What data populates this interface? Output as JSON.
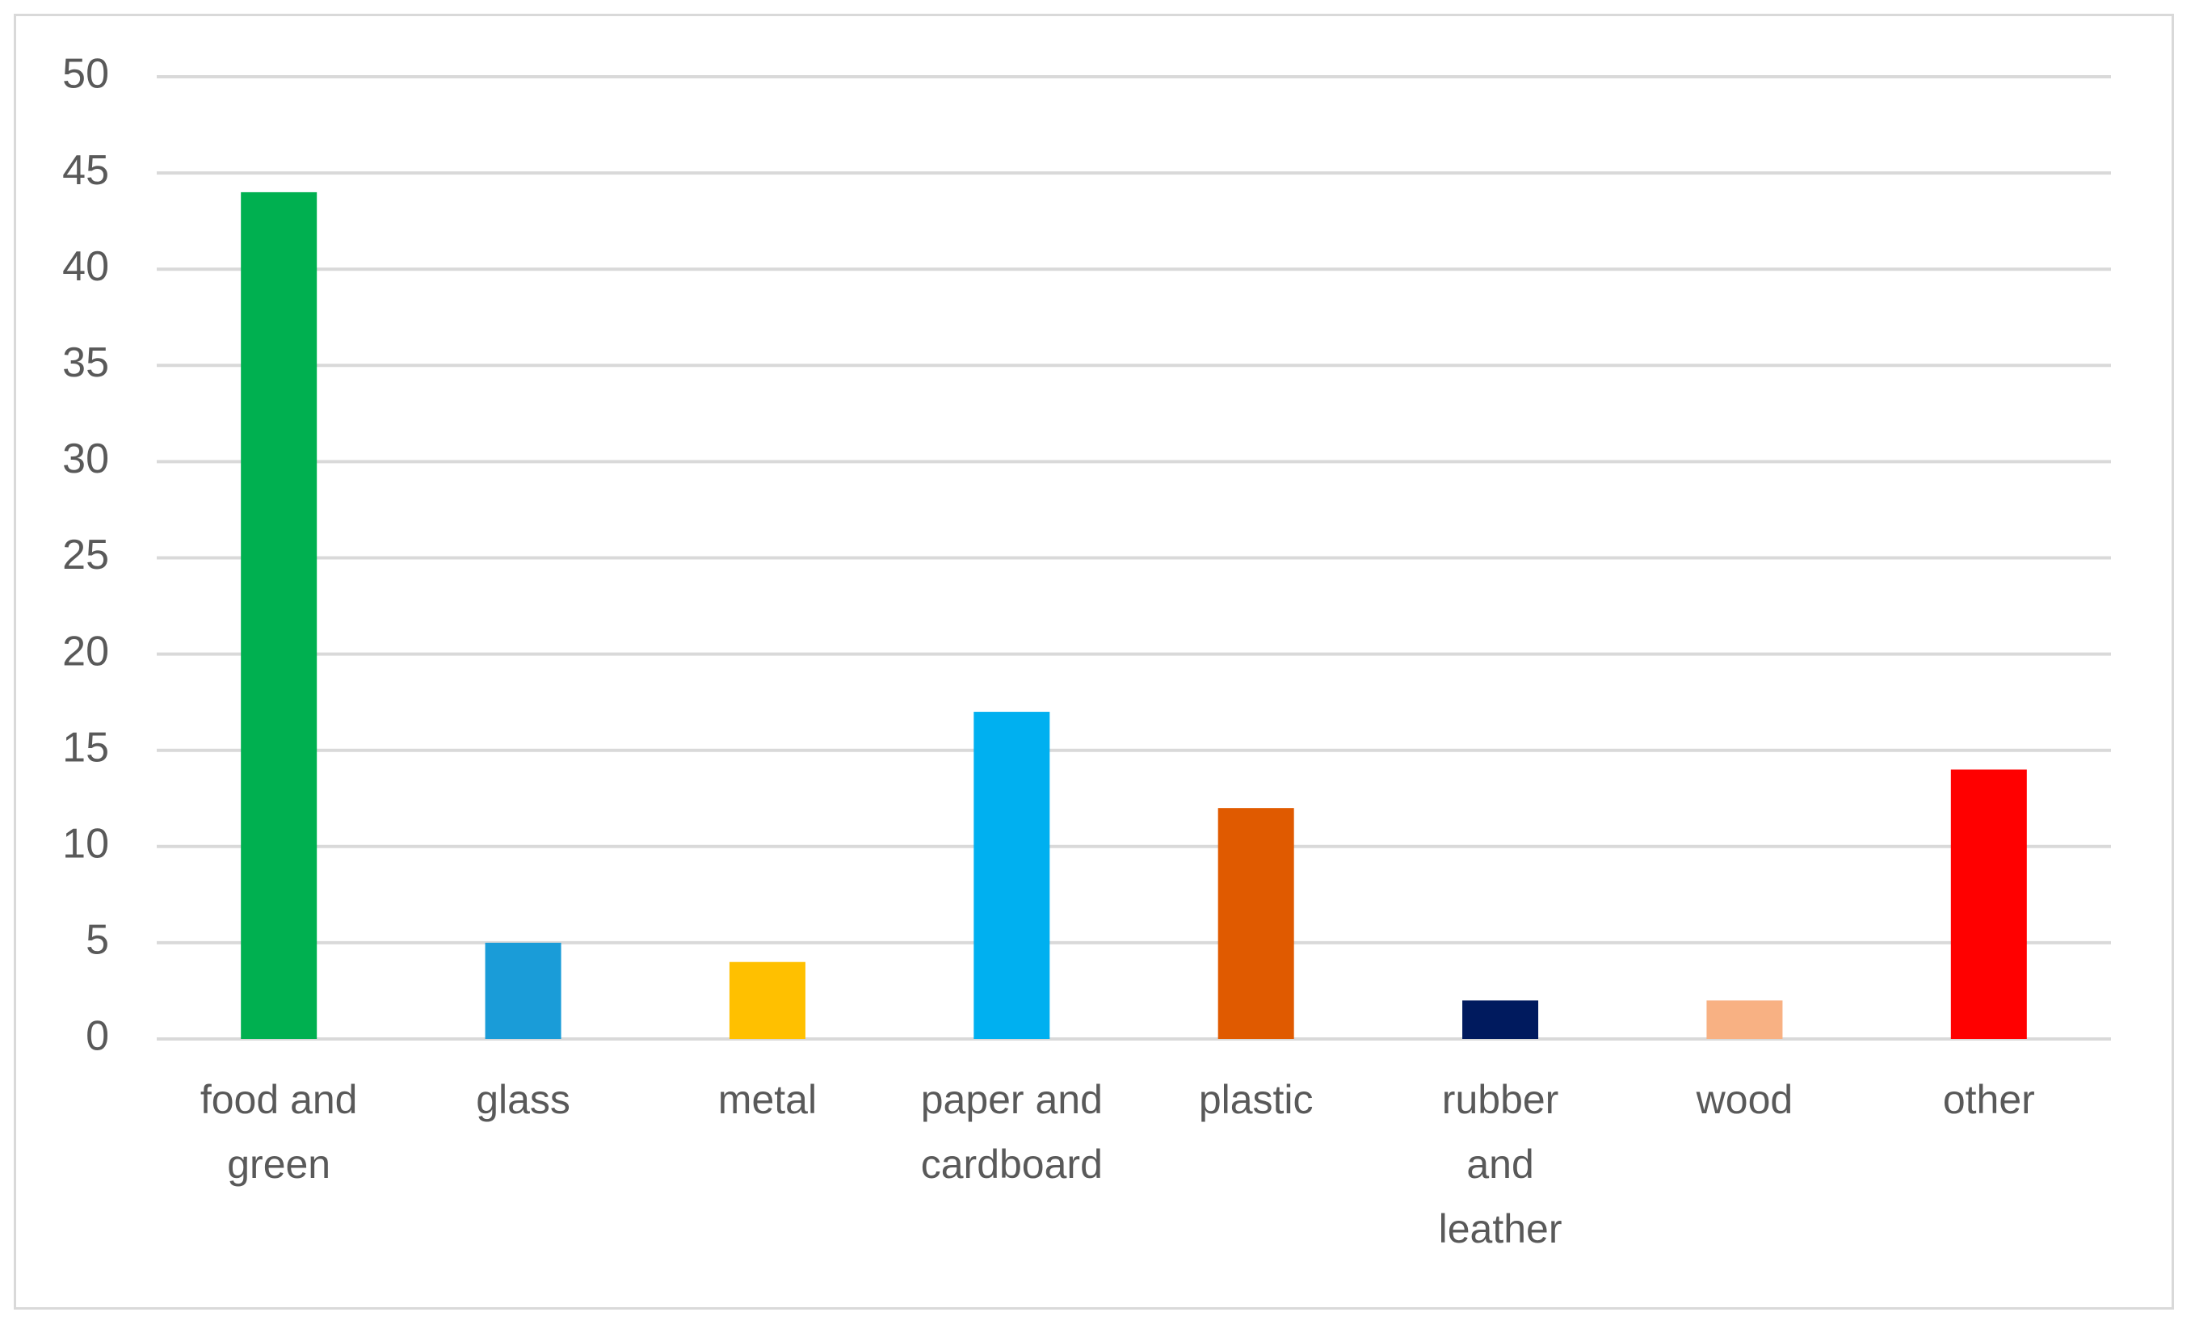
{
  "chart_data": {
    "type": "bar",
    "categories": [
      "food and green",
      "glass",
      "metal",
      "paper and cardboard",
      "plastic",
      "rubber and leather",
      "wood",
      "other"
    ],
    "values": [
      44,
      5,
      4,
      17,
      12,
      2,
      2,
      14
    ],
    "colors": [
      "#00b050",
      "#1a9cd8",
      "#ffc000",
      "#00b0f0",
      "#e05a00",
      "#001a5e",
      "#f8b183",
      "#ff0000"
    ],
    "ylim": [
      0,
      50
    ],
    "yticks": [
      0,
      5,
      10,
      15,
      20,
      25,
      30,
      35,
      40,
      45,
      50
    ],
    "grid": true
  }
}
